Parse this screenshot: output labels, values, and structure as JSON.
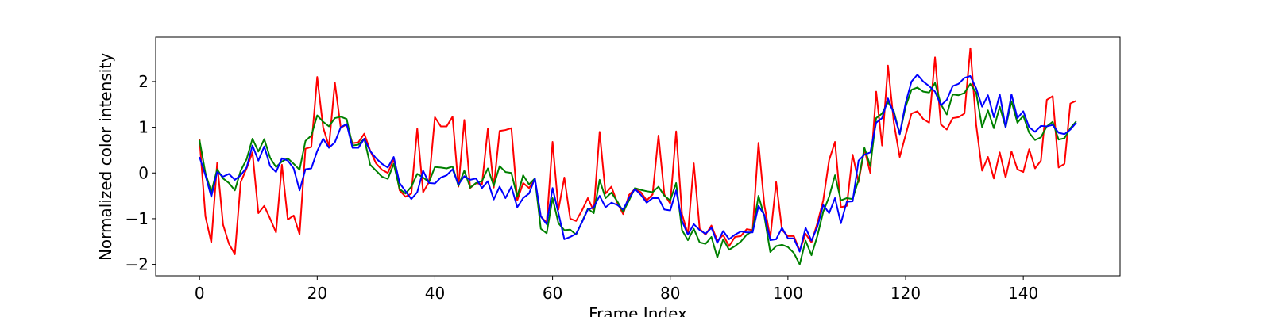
{
  "chart_data": {
    "type": "line",
    "title": "",
    "xlabel": "Frame Index",
    "ylabel": "Normalized color intensity",
    "xlim": [
      -7.45,
      156.45
    ],
    "ylim": [
      -2.25,
      2.97
    ],
    "xticks": [
      0,
      20,
      40,
      60,
      80,
      100,
      120,
      140
    ],
    "yticks": [
      -2,
      -1,
      0,
      1,
      2
    ],
    "grid": false,
    "legend": "none",
    "series": [
      {
        "color": "#ff0000",
        "values": [
          0.74,
          -0.95,
          -1.52,
          0.22,
          -1.13,
          -1.55,
          -1.78,
          -0.2,
          0.1,
          0.45,
          -0.88,
          -0.72,
          -1.0,
          -1.3,
          0.18,
          -1.02,
          -0.93,
          -1.34,
          0.53,
          0.57,
          2.1,
          1.0,
          0.58,
          1.98,
          0.99,
          1.06,
          0.65,
          0.67,
          0.86,
          0.49,
          0.21,
          0.07,
          0.0,
          0.3,
          -0.38,
          -0.52,
          -0.45,
          0.97,
          -0.42,
          -0.2,
          1.22,
          1.02,
          1.02,
          1.23,
          -0.3,
          1.16,
          -0.33,
          -0.22,
          -0.25,
          0.97,
          -0.32,
          0.92,
          0.94,
          0.98,
          -0.6,
          -0.22,
          -0.33,
          -0.14,
          -0.95,
          -1.09,
          0.68,
          -0.8,
          -0.1,
          -1.0,
          -1.05,
          -0.82,
          -0.55,
          -0.83,
          0.9,
          -0.45,
          -0.3,
          -0.65,
          -0.9,
          -0.48,
          -0.35,
          -0.42,
          -0.6,
          -0.47,
          0.82,
          -0.47,
          -0.67,
          0.91,
          -0.9,
          -1.34,
          0.21,
          -1.22,
          -1.35,
          -1.15,
          -1.48,
          -1.36,
          -1.6,
          -1.4,
          -1.38,
          -1.23,
          -1.25,
          0.66,
          -0.71,
          -1.42,
          -0.2,
          -1.25,
          -1.38,
          -1.38,
          -1.7,
          -1.33,
          -1.52,
          -1.1,
          -0.6,
          0.28,
          0.68,
          -0.75,
          -0.72,
          0.4,
          -0.2,
          0.52,
          0.0,
          1.78,
          0.6,
          2.35,
          1.1,
          0.35,
          0.83,
          1.3,
          1.35,
          1.18,
          1.1,
          2.53,
          1.06,
          0.95,
          1.2,
          1.22,
          1.3,
          2.73,
          1.05,
          0.05,
          0.35,
          -0.12,
          0.45,
          -0.1,
          0.47,
          0.08,
          0.02,
          0.52,
          0.1,
          0.27,
          1.6,
          1.68,
          0.12,
          0.2,
          1.52,
          1.58
        ]
      },
      {
        "color": "#008000",
        "values": [
          0.72,
          0.0,
          -0.42,
          0.08,
          -0.12,
          -0.22,
          -0.38,
          0.05,
          0.3,
          0.75,
          0.47,
          0.74,
          0.33,
          0.13,
          0.25,
          0.32,
          0.2,
          0.07,
          0.7,
          0.82,
          1.26,
          1.12,
          1.02,
          1.2,
          1.23,
          1.18,
          0.6,
          0.62,
          0.75,
          0.18,
          0.05,
          -0.08,
          -0.13,
          0.2,
          -0.35,
          -0.45,
          -0.3,
          -0.02,
          -0.1,
          -0.2,
          0.13,
          0.12,
          0.1,
          0.14,
          -0.28,
          0.05,
          -0.32,
          -0.22,
          -0.18,
          0.1,
          -0.28,
          0.15,
          0.02,
          0.0,
          -0.52,
          -0.05,
          -0.25,
          -0.12,
          -1.22,
          -1.32,
          -0.55,
          -1.1,
          -1.25,
          -1.24,
          -1.35,
          -1.07,
          -0.78,
          -0.88,
          -0.15,
          -0.55,
          -0.43,
          -0.62,
          -0.85,
          -0.6,
          -0.33,
          -0.37,
          -0.4,
          -0.42,
          -0.3,
          -0.5,
          -0.6,
          -0.22,
          -1.25,
          -1.47,
          -1.22,
          -1.52,
          -1.55,
          -1.4,
          -1.85,
          -1.45,
          -1.68,
          -1.6,
          -1.5,
          -1.35,
          -1.27,
          -0.5,
          -0.95,
          -1.73,
          -1.6,
          -1.57,
          -1.62,
          -1.75,
          -2.0,
          -1.48,
          -1.8,
          -1.38,
          -0.85,
          -0.52,
          -0.05,
          -0.6,
          -0.55,
          -0.57,
          -0.15,
          0.55,
          0.15,
          1.2,
          1.3,
          1.55,
          1.35,
          0.85,
          1.45,
          1.82,
          1.87,
          1.78,
          1.76,
          1.97,
          1.5,
          1.28,
          1.72,
          1.7,
          1.75,
          1.95,
          1.75,
          1.0,
          1.37,
          0.98,
          1.45,
          1.0,
          1.57,
          1.1,
          1.25,
          0.88,
          0.72,
          0.78,
          1.02,
          1.12,
          0.73,
          0.76,
          0.98,
          1.13
        ]
      },
      {
        "color": "#0000ff",
        "values": [
          0.35,
          -0.05,
          -0.52,
          0.02,
          -0.08,
          -0.02,
          -0.15,
          -0.05,
          0.12,
          0.6,
          0.27,
          0.58,
          0.15,
          0.02,
          0.32,
          0.27,
          0.1,
          -0.38,
          0.08,
          0.1,
          0.48,
          0.75,
          0.55,
          0.67,
          1.0,
          1.07,
          0.55,
          0.55,
          0.75,
          0.48,
          0.32,
          0.2,
          0.12,
          0.35,
          -0.22,
          -0.4,
          -0.57,
          -0.42,
          0.05,
          -0.22,
          -0.23,
          -0.1,
          -0.05,
          0.08,
          -0.25,
          -0.07,
          -0.15,
          -0.12,
          -0.33,
          -0.18,
          -0.58,
          -0.3,
          -0.55,
          -0.3,
          -0.75,
          -0.55,
          -0.45,
          -0.12,
          -0.95,
          -1.12,
          -0.33,
          -0.88,
          -1.45,
          -1.4,
          -1.33,
          -1.08,
          -0.8,
          -0.75,
          -0.5,
          -0.75,
          -0.65,
          -0.7,
          -0.8,
          -0.55,
          -0.35,
          -0.48,
          -0.65,
          -0.55,
          -0.55,
          -0.8,
          -0.82,
          -0.38,
          -1.05,
          -1.35,
          -1.12,
          -1.25,
          -1.33,
          -1.2,
          -1.53,
          -1.27,
          -1.45,
          -1.35,
          -1.28,
          -1.3,
          -1.3,
          -0.72,
          -0.92,
          -1.47,
          -1.45,
          -1.2,
          -1.43,
          -1.43,
          -1.72,
          -1.2,
          -1.48,
          -1.18,
          -0.7,
          -0.88,
          -0.55,
          -1.1,
          -0.63,
          -0.62,
          0.27,
          0.4,
          0.45,
          1.1,
          1.2,
          1.63,
          1.3,
          0.85,
          1.53,
          2.0,
          2.15,
          2.0,
          1.9,
          1.78,
          1.48,
          1.6,
          1.9,
          1.95,
          2.08,
          2.12,
          1.85,
          1.45,
          1.7,
          1.22,
          1.72,
          1.0,
          1.72,
          1.2,
          1.35,
          1.0,
          0.9,
          1.03,
          1.02,
          1.05,
          0.88,
          0.85,
          0.95,
          1.1
        ]
      }
    ]
  }
}
